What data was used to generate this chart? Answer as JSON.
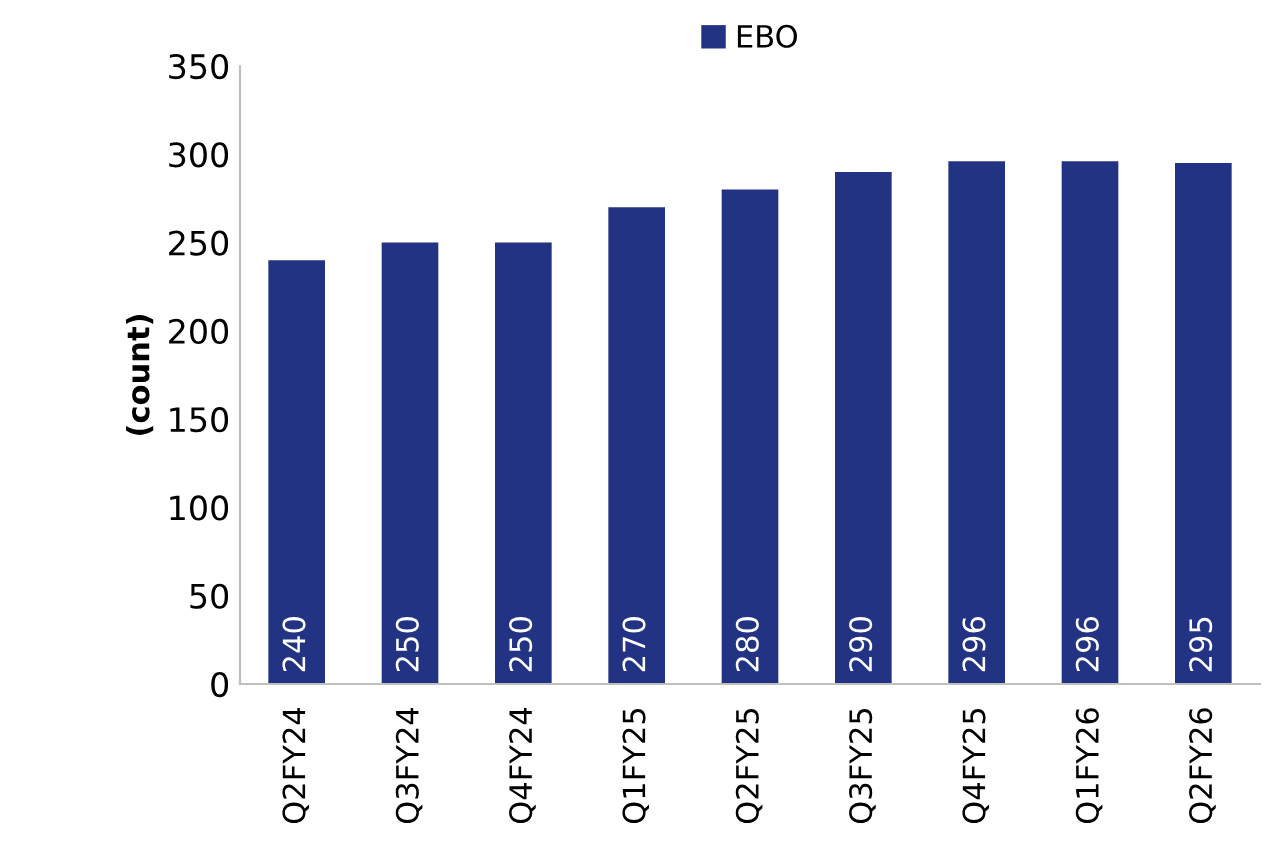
{
  "chart_data": {
    "type": "bar",
    "ylabel": "(count)",
    "categories": [
      "Q2FY24",
      "Q3FY24",
      "Q4FY24",
      "Q1FY25",
      "Q2FY25",
      "Q3FY25",
      "Q4FY25",
      "Q1FY26",
      "Q2FY26"
    ],
    "series": [
      {
        "name": "EBO",
        "color": "#233383",
        "values": [
          240,
          250,
          250,
          270,
          280,
          290,
          296,
          296,
          295
        ]
      }
    ],
    "ylim": [
      0,
      350
    ],
    "yticks": [
      0,
      50,
      100,
      150,
      200,
      250,
      300,
      350
    ],
    "data_labels": true,
    "legend": "top",
    "grid": false
  }
}
